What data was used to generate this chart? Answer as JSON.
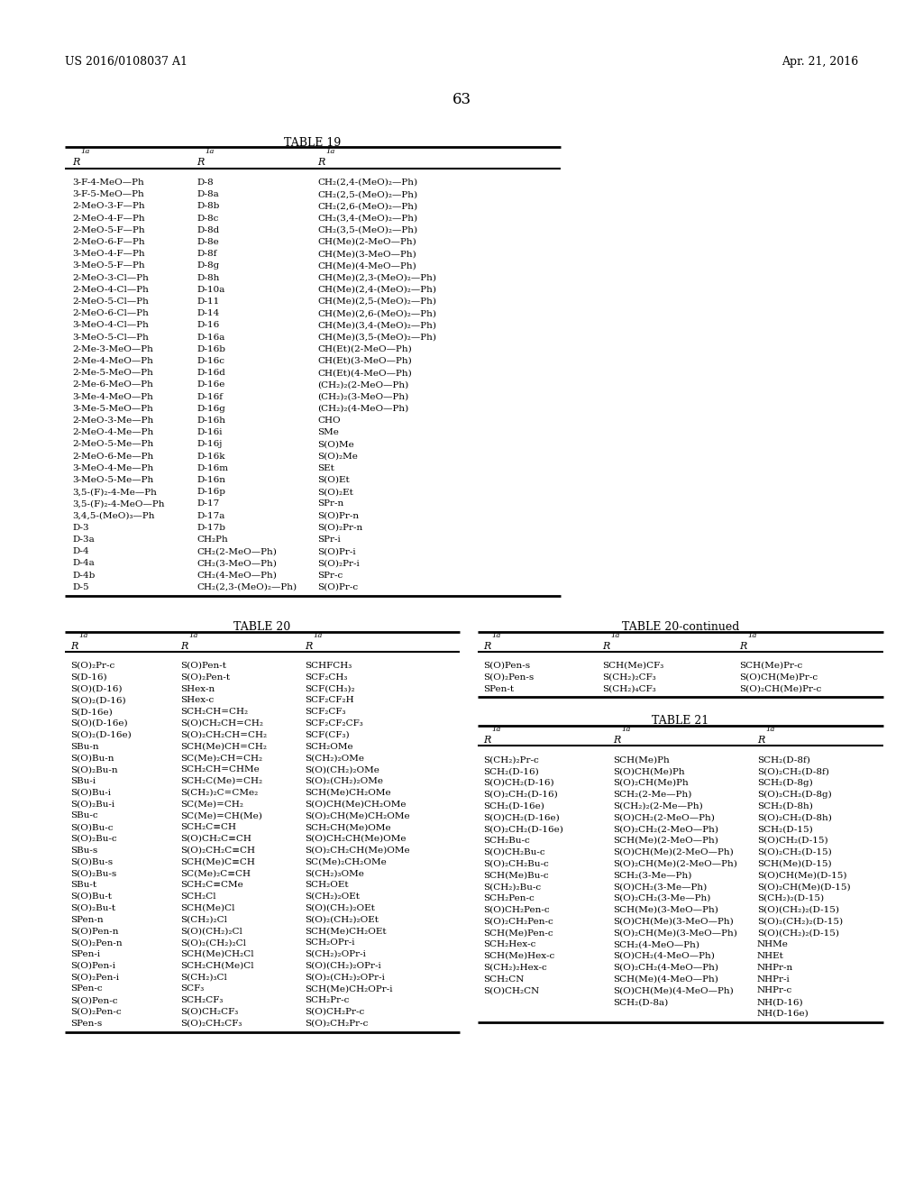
{
  "header_left": "US 2016/0108037 A1",
  "header_right": "Apr. 21, 2016",
  "page_number": "63",
  "bg": "#ffffff",
  "fg": "#000000",
  "table19_title": "TABLE 19",
  "table19_rows": [
    [
      "3-F-4-MeO—Ph",
      "D-8",
      "CH₂(2,4-(MeO)₂—Ph)"
    ],
    [
      "3-F-5-MeO—Ph",
      "D-8a",
      "CH₂(2,5-(MeO)₂—Ph)"
    ],
    [
      "2-MeO-3-F—Ph",
      "D-8b",
      "CH₂(2,6-(MeO)₂—Ph)"
    ],
    [
      "2-MeO-4-F—Ph",
      "D-8c",
      "CH₂(3,4-(MeO)₂—Ph)"
    ],
    [
      "2-MeO-5-F—Ph",
      "D-8d",
      "CH₂(3,5-(MeO)₂—Ph)"
    ],
    [
      "2-MeO-6-F—Ph",
      "D-8e",
      "CH(Me)(2-MeO—Ph)"
    ],
    [
      "3-MeO-4-F—Ph",
      "D-8f",
      "CH(Me)(3-MeO—Ph)"
    ],
    [
      "3-MeO-5-F—Ph",
      "D-8g",
      "CH(Me)(4-MeO—Ph)"
    ],
    [
      "2-MeO-3-Cl—Ph",
      "D-8h",
      "CH(Me)(2,3-(MeO)₂—Ph)"
    ],
    [
      "2-MeO-4-Cl—Ph",
      "D-10a",
      "CH(Me)(2,4-(MeO)₂—Ph)"
    ],
    [
      "2-MeO-5-Cl—Ph",
      "D-11",
      "CH(Me)(2,5-(MeO)₂—Ph)"
    ],
    [
      "2-MeO-6-Cl—Ph",
      "D-14",
      "CH(Me)(2,6-(MeO)₂—Ph)"
    ],
    [
      "3-MeO-4-Cl—Ph",
      "D-16",
      "CH(Me)(3,4-(MeO)₂—Ph)"
    ],
    [
      "3-MeO-5-Cl—Ph",
      "D-16a",
      "CH(Me)(3,5-(MeO)₂—Ph)"
    ],
    [
      "2-Me-3-MeO—Ph",
      "D-16b",
      "CH(Et)(2-MeO—Ph)"
    ],
    [
      "2-Me-4-MeO—Ph",
      "D-16c",
      "CH(Et)(3-MeO—Ph)"
    ],
    [
      "2-Me-5-MeO—Ph",
      "D-16d",
      "CH(Et)(4-MeO—Ph)"
    ],
    [
      "2-Me-6-MeO—Ph",
      "D-16e",
      "(CH₂)₂(2-MeO—Ph)"
    ],
    [
      "3-Me-4-MeO—Ph",
      "D-16f",
      "(CH₂)₂(3-MeO—Ph)"
    ],
    [
      "3-Me-5-MeO—Ph",
      "D-16g",
      "(CH₂)₂(4-MeO—Ph)"
    ],
    [
      "2-MeO-3-Me—Ph",
      "D-16h",
      "CHO"
    ],
    [
      "2-MeO-4-Me—Ph",
      "D-16i",
      "SMe"
    ],
    [
      "2-MeO-5-Me—Ph",
      "D-16j",
      "S(O)Me"
    ],
    [
      "2-MeO-6-Me—Ph",
      "D-16k",
      "S(O)₂Me"
    ],
    [
      "3-MeO-4-Me—Ph",
      "D-16m",
      "SEt"
    ],
    [
      "3-MeO-5-Me—Ph",
      "D-16n",
      "S(O)Et"
    ],
    [
      "3,5-(F)₂-4-Me—Ph",
      "D-16p",
      "S(O)₂Et"
    ],
    [
      "3,5-(F)₂-4-MeO—Ph",
      "D-17",
      "SPr-n"
    ],
    [
      "3,4,5-(MeO)₃—Ph",
      "D-17a",
      "S(O)Pr-n"
    ],
    [
      "D-3",
      "D-17b",
      "S(O)₂Pr-n"
    ],
    [
      "D-3a",
      "CH₂Ph",
      "SPr-i"
    ],
    [
      "D-4",
      "CH₂(2-MeO—Ph)",
      "S(O)Pr-i"
    ],
    [
      "D-4a",
      "CH₂(3-MeO—Ph)",
      "S(O)₂Pr-i"
    ],
    [
      "D-4b",
      "CH₂(4-MeO—Ph)",
      "SPr-c"
    ],
    [
      "D-5",
      "CH₂(2,3-(MeO)₂—Ph)",
      "S(O)Pr-c"
    ]
  ],
  "table20_title": "TABLE 20",
  "table20_rows": [
    [
      "S(O)₂Pr-c",
      "S(O)Pen-t",
      "SCHFCH₃"
    ],
    [
      "S(D-16)",
      "S(O)₂Pen-t",
      "SCF₂CH₃"
    ],
    [
      "S(O)(D-16)",
      "SHex-n",
      "SCF(CH₃)₂"
    ],
    [
      "S(O)₂(D-16)",
      "SHex-c",
      "SCF₂CF₂H"
    ],
    [
      "S(D-16e)",
      "SCH₂CH=CH₂",
      "SCF₂CF₃"
    ],
    [
      "S(O)(D-16e)",
      "S(O)CH₂CH=CH₂",
      "SCF₂CF₂CF₃"
    ],
    [
      "S(O)₂(D-16e)",
      "S(O)₂CH₂CH=CH₂",
      "SCF(CF₃)"
    ],
    [
      "SBu-n",
      "SCH(Me)CH=CH₂",
      "SCH₂OMe"
    ],
    [
      "S(O)Bu-n",
      "SC(Me)₂CH=CH₂",
      "S(CH₂)₂OMe"
    ],
    [
      "S(O)₂Bu-n",
      "SCH₂CH=CHMe",
      "S(O)(CH₂)₂OMe"
    ],
    [
      "SBu-i",
      "SCH₂C(Me)=CH₂",
      "S(O)₂(CH₂)₂OMe"
    ],
    [
      "S(O)Bu-i",
      "S(CH₂)₂C=CMe₂",
      "SCH(Me)CH₂OMe"
    ],
    [
      "S(O)₂Bu-i",
      "SC(Me)=CH₂",
      "S(O)CH(Me)CH₂OMe"
    ],
    [
      "SBu-c",
      "SC(Me)=CH(Me)",
      "S(O)₂CH(Me)CH₂OMe"
    ],
    [
      "S(O)Bu-c",
      "SCH₂C≡CH",
      "SCH₂CH(Me)OMe"
    ],
    [
      "S(O)₂Bu-c",
      "S(O)CH₂C≡CH",
      "S(O)CH₂CH(Me)OMe"
    ],
    [
      "SBu-s",
      "S(O)₂CH₂C≡CH",
      "S(O)₂CH₂CH(Me)OMe"
    ],
    [
      "S(O)Bu-s",
      "SCH(Me)C≡CH",
      "SC(Me)₂CH₂OMe"
    ],
    [
      "S(O)₂Bu-s",
      "SC(Me)₂C≡CH",
      "S(CH₂)₃OMe"
    ],
    [
      "SBu-t",
      "SCH₂C≡CMe",
      "SCH₂OEt"
    ],
    [
      "S(O)Bu-t",
      "SCH₂Cl",
      "S(CH₂)₂OEt"
    ],
    [
      "S(O)₂Bu-t",
      "SCH(Me)Cl",
      "S(O)(CH₂)₂OEt"
    ],
    [
      "SPen-n",
      "S(CH₂)₂Cl",
      "S(O)₂(CH₂)₂OEt"
    ],
    [
      "S(O)Pen-n",
      "S(O)(CH₂)₂Cl",
      "SCH(Me)CH₂OEt"
    ],
    [
      "S(O)₂Pen-n",
      "S(O)₂(CH₂)₂Cl",
      "SCH₂OPr-i"
    ],
    [
      "SPen-i",
      "SCH(Me)CH₂Cl",
      "S(CH₂)₂OPr-i"
    ],
    [
      "S(O)Pen-i",
      "SCH₂CH(Me)Cl",
      "S(O)(CH₂)₂OPr-i"
    ],
    [
      "S(O)₂Pen-i",
      "S(CH₂)₃Cl",
      "S(O)₂(CH₂)₂OPr-i"
    ],
    [
      "SPen-c",
      "SCF₃",
      "SCH(Me)CH₂OPr-i"
    ],
    [
      "S(O)Pen-c",
      "SCH₂CF₃",
      "SCH₂Pr-c"
    ],
    [
      "S(O)₂Pen-c",
      "S(O)CH₂CF₃",
      "S(O)CH₂Pr-c"
    ],
    [
      "SPen-s",
      "S(O)₂CH₂CF₃",
      "S(O)₂CH₂Pr-c"
    ]
  ],
  "table20c_title": "TABLE 20-continued",
  "table20c_rows": [
    [
      "S(O)Pen-s",
      "SCH(Me)CF₃",
      "SCH(Me)Pr-c"
    ],
    [
      "S(O)₂Pen-s",
      "S(CH₂)₂CF₃",
      "S(O)CH(Me)Pr-c"
    ],
    [
      "SPen-t",
      "S(CH₂)₄CF₃",
      "S(O)₂CH(Me)Pr-c"
    ]
  ],
  "table21_title": "TABLE 21",
  "table21_rows": [
    [
      "S(CH₂)₂Pr-c",
      "SCH(Me)Ph",
      "SCH₂(D-8f)"
    ],
    [
      "SCH₂(D-16)",
      "S(O)CH(Me)Ph",
      "S(O)₂CH₂(D-8f)"
    ],
    [
      "S(O)CH₂(D-16)",
      "S(O)₂CH(Me)Ph",
      "SCH₂(D-8g)"
    ],
    [
      "S(O)₂CH₂(D-16)",
      "SCH₂(2-Me—Ph)",
      "S(O)₂CH₂(D-8g)"
    ],
    [
      "SCH₂(D-16e)",
      "S(CH₂)₂(2-Me—Ph)",
      "SCH₂(D-8h)"
    ],
    [
      "S(O)CH₂(D-16e)",
      "S(O)CH₂(2-MeO—Ph)",
      "S(O)₂CH₂(D-8h)"
    ],
    [
      "S(O)₂CH₂(D-16e)",
      "S(O)₂CH₂(2-MeO—Ph)",
      "SCH₂(D-15)"
    ],
    [
      "SCH₂Bu-c",
      "SCH(Me)(2-MeO—Ph)",
      "S(O)CH₂(D-15)"
    ],
    [
      "S(O)CH₂Bu-c",
      "S(O)CH(Me)(2-MeO—Ph)",
      "S(O)₂CH₂(D-15)"
    ],
    [
      "S(O)₂CH₂Bu-c",
      "S(O)₂CH(Me)(2-MeO—Ph)",
      "SCH(Me)(D-15)"
    ],
    [
      "SCH(Me)Bu-c",
      "SCH₂(3-Me—Ph)",
      "S(O)CH(Me)(D-15)"
    ],
    [
      "S(CH₂)₂Bu-c",
      "S(O)CH₂(3-Me—Ph)",
      "S(O)₂CH(Me)(D-15)"
    ],
    [
      "SCH₂Pen-c",
      "S(O)₂CH₂(3-Me—Ph)",
      "S(CH₂)₂(D-15)"
    ],
    [
      "S(O)CH₂Pen-c",
      "SCH(Me)(3-MeO—Ph)",
      "S(O)(CH₂)₂(D-15)"
    ],
    [
      "S(O)₂CH₂Pen-c",
      "S(O)CH(Me)(3-MeO—Ph)",
      "S(O)₂(CH₂)₂(D-15)"
    ],
    [
      "SCH(Me)Pen-c",
      "S(O)₂CH(Me)(3-MeO—Ph)",
      "S(O)(CH₂)₂(D-15)"
    ],
    [
      "SCH₂Hex-c",
      "SCH₂(4-MeO—Ph)",
      "NHMe"
    ],
    [
      "SCH(Me)Hex-c",
      "S(O)CH₂(4-MeO—Ph)",
      "NHEt"
    ],
    [
      "S(CH₂)₂Hex-c",
      "S(O)₂CH₂(4-MeO—Ph)",
      "NHPr-n"
    ],
    [
      "SCH₂CN",
      "SCH(Me)(4-MeO—Ph)",
      "NHPr-i"
    ],
    [
      "S(O)CH₂CN",
      "S(O)CH(Me)(4-MeO—Ph)",
      "NHPr-c"
    ],
    [
      "",
      "SCH₂(D-8a)",
      "NH(D-16)"
    ],
    [
      "",
      "",
      "NH(D-16e)"
    ]
  ]
}
